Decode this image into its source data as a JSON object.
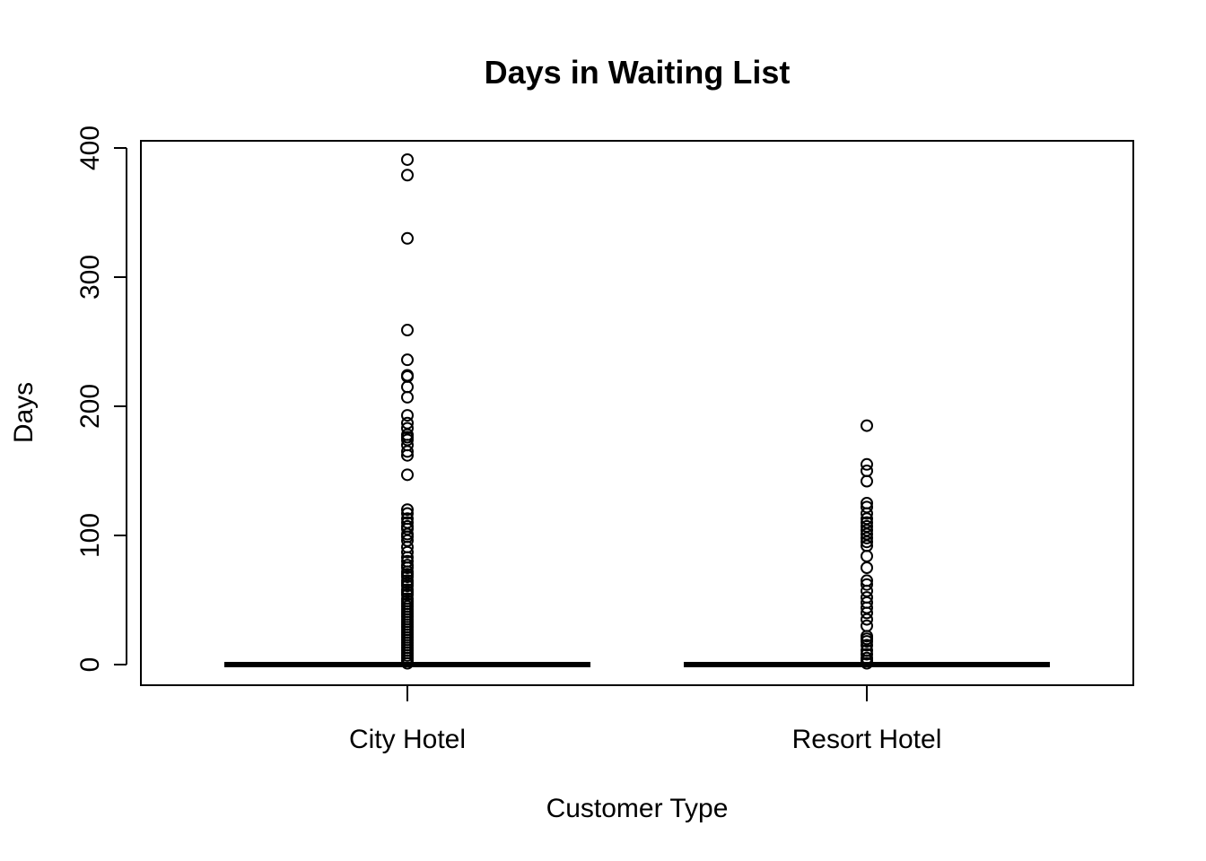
{
  "chart_data": {
    "type": "boxplot",
    "title": "Days in Waiting List",
    "xlabel": "Customer Type",
    "ylabel": "Days",
    "ylim": [
      0,
      400
    ],
    "yticks": [
      0,
      100,
      200,
      300,
      400
    ],
    "grid": false,
    "categories": [
      "City Hotel",
      "Resort Hotel"
    ],
    "series": [
      {
        "category": "City Hotel",
        "min": 0,
        "q1": 0,
        "median": 0,
        "q3": 0,
        "max": 0,
        "outliers": [
          391,
          379,
          330,
          259,
          236,
          224,
          223,
          215,
          207,
          193,
          187,
          183,
          178,
          176,
          174,
          170,
          165,
          162,
          147,
          120,
          117,
          113,
          110,
          107,
          105,
          101,
          99,
          96,
          91,
          87,
          83,
          80,
          77,
          75,
          72,
          70,
          68,
          65,
          63,
          61,
          58,
          56,
          54,
          51,
          49,
          47,
          45,
          43,
          41,
          39,
          37,
          35,
          33,
          31,
          29,
          27,
          25,
          23,
          21,
          19,
          17,
          15,
          13,
          11,
          9,
          7,
          5,
          3,
          1
        ]
      },
      {
        "category": "Resort Hotel",
        "min": 0,
        "q1": 0,
        "median": 0,
        "q3": 0,
        "max": 0,
        "outliers": [
          185,
          155,
          150,
          142,
          125,
          122,
          117,
          113,
          110,
          107,
          104,
          101,
          98,
          95,
          92,
          84,
          75,
          65,
          62,
          57,
          52,
          48,
          44,
          40,
          35,
          30,
          22,
          20,
          18,
          15,
          11,
          8,
          5,
          3,
          1
        ]
      }
    ]
  }
}
